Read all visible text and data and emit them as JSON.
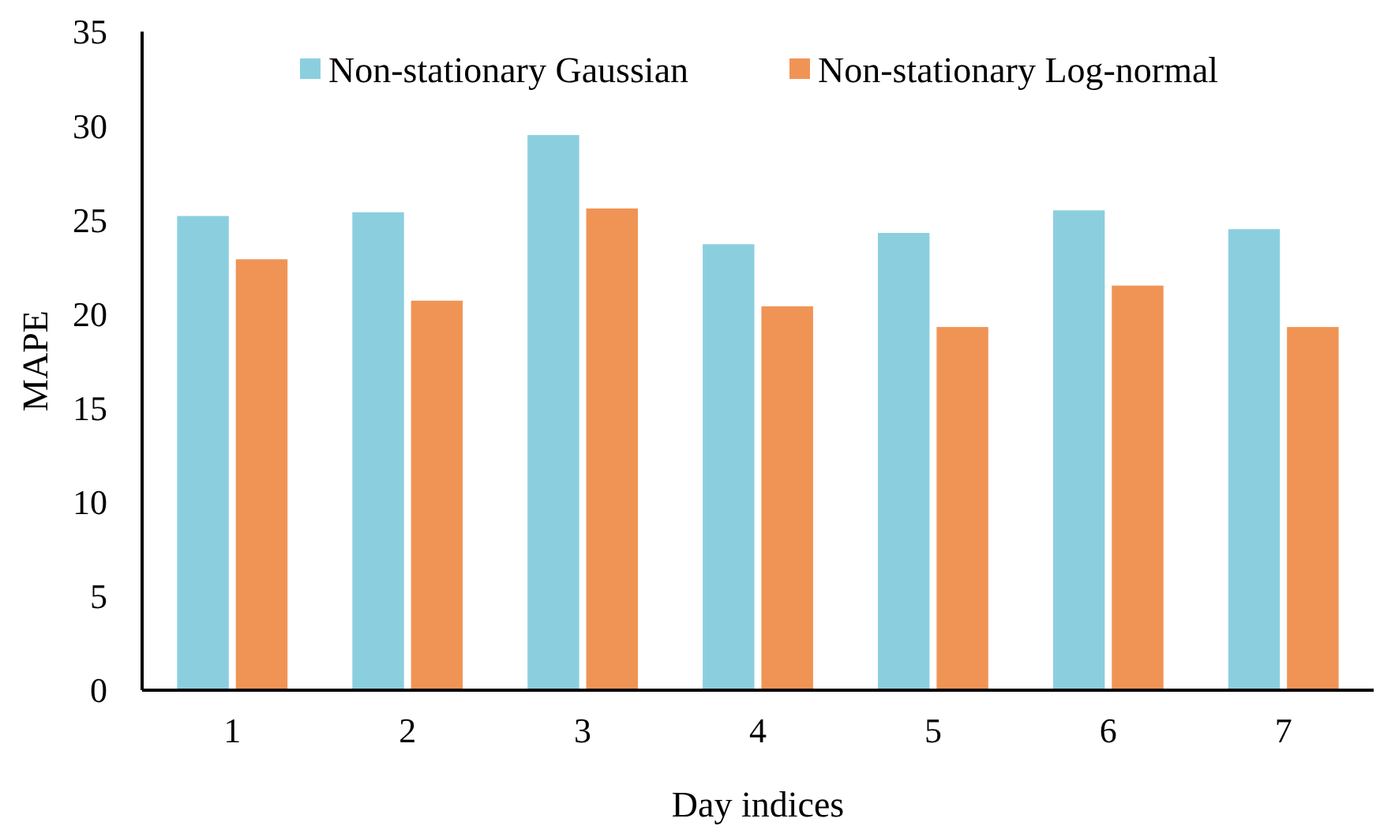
{
  "chart_data": {
    "type": "bar",
    "xlabel": "Day indices",
    "ylabel": "MAPE",
    "categories": [
      "1",
      "2",
      "3",
      "4",
      "5",
      "6",
      "7"
    ],
    "series": [
      {
        "name": "Non-stationary Gaussian",
        "color": "#8bcfdf",
        "values": [
          25.2,
          25.4,
          29.5,
          23.7,
          24.3,
          25.5,
          24.5
        ]
      },
      {
        "name": "Non-stationary Log-normal",
        "color": "#f09455",
        "values": [
          22.9,
          20.7,
          25.6,
          20.4,
          19.3,
          21.5,
          19.3
        ]
      }
    ],
    "ylim": [
      0,
      35
    ],
    "yticks": [
      0,
      5,
      10,
      15,
      20,
      25,
      30,
      35
    ],
    "grid": false,
    "legend": "top"
  }
}
